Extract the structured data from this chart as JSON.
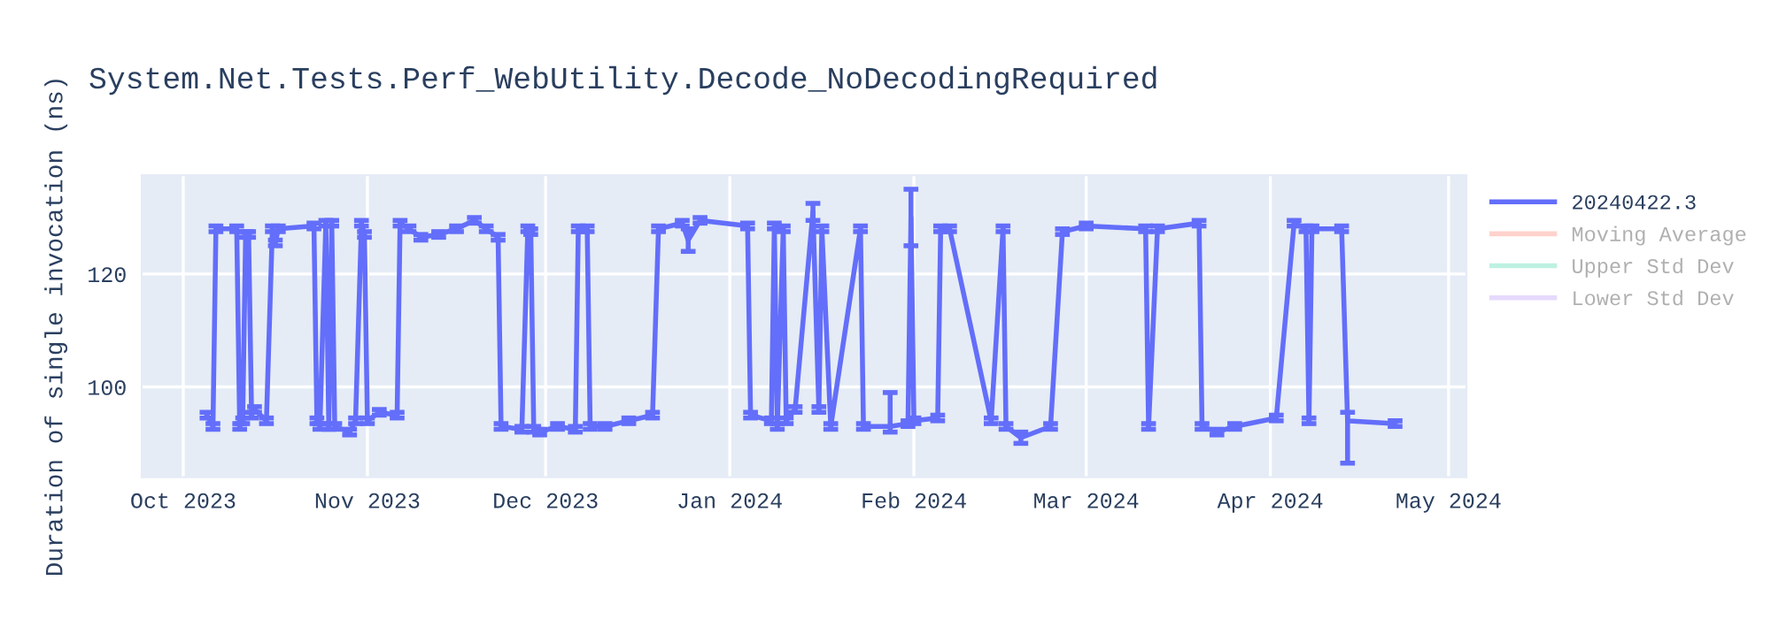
{
  "chart_data": {
    "type": "line",
    "title": "System.Net.Tests.Perf_WebUtility.Decode_NoDecodingRequired",
    "ylabel": "Duration of single invocation (ns)",
    "x": [
      "2023-10-05",
      "2023-10-06",
      "2023-10-06T12:00",
      "2023-10-10",
      "2023-10-10T12:00",
      "2023-10-11",
      "2023-10-11T12:00",
      "2023-10-12",
      "2023-10-12T12:00",
      "2023-10-13",
      "2023-10-15",
      "2023-10-16",
      "2023-10-16T12:00",
      "2023-10-17",
      "2023-10-23",
      "2023-10-23T12:00",
      "2023-10-24",
      "2023-10-25",
      "2023-10-25T12:00",
      "2023-10-26",
      "2023-10-26T12:00",
      "2023-10-29",
      "2023-10-30",
      "2023-10-31",
      "2023-10-31T12:00",
      "2023-11-01",
      "2023-11-03",
      "2023-11-06",
      "2023-11-06T12:00",
      "2023-11-08",
      "2023-11-10",
      "2023-11-13",
      "2023-11-16",
      "2023-11-19",
      "2023-11-21",
      "2023-11-23",
      "2023-11-23T12:00",
      "2023-11-27",
      "2023-11-28",
      "2023-11-28T12:00",
      "2023-11-29",
      "2023-11-30",
      "2023-12-03",
      "2023-12-06",
      "2023-12-06T12:00",
      "2023-12-08",
      "2023-12-08T12:00",
      "2023-12-11",
      "2023-12-15",
      "2023-12-19",
      "2023-12-20",
      "2023-12-24",
      "2023-12-25",
      "2023-12-27",
      "2024-01-04",
      "2024-01-04T12:00",
      "2024-01-08",
      "2024-01-08T12:00",
      "2024-01-09",
      "2024-01-10",
      "2024-01-10T12:00",
      "2024-01-12",
      "2024-01-15",
      "2024-01-16",
      "2024-01-16T12:00",
      "2024-01-18",
      "2024-01-23",
      "2024-01-23T12:00",
      "2024-01-28",
      "2024-01-31",
      "2024-01-31T12:00",
      "2024-02-01",
      "2024-02-05",
      "2024-02-05T12:00",
      "2024-02-07",
      "2024-02-14",
      "2024-02-16",
      "2024-02-16T12:00",
      "2024-02-19",
      "2024-02-24",
      "2024-02-26",
      "2024-03-01",
      "2024-03-11",
      "2024-03-11T12:00",
      "2024-03-13",
      "2024-03-20",
      "2024-03-20T12:00",
      "2024-03-23",
      "2024-03-26",
      "2024-04-02",
      "2024-04-05",
      "2024-04-07",
      "2024-04-07T12:00",
      "2024-04-08",
      "2024-04-13",
      "2024-04-14",
      "2024-04-22"
    ],
    "series": [
      {
        "name": "20240422.3",
        "color": "#636efa",
        "values": [
          95,
          93,
          128,
          128,
          93,
          94,
          127,
          127,
          95,
          96,
          94,
          128,
          125.5,
          128,
          128.5,
          94,
          93,
          129,
          93,
          129,
          93,
          92,
          94,
          129,
          127,
          94,
          95.5,
          95,
          129,
          128,
          126.5,
          127,
          128,
          129.5,
          128,
          126.5,
          93,
          92.5,
          128,
          127.5,
          92.5,
          92,
          93,
          92.5,
          128,
          128,
          93,
          93,
          94,
          95,
          128,
          129,
          126,
          129.5,
          128.5,
          95,
          94,
          128.5,
          93,
          128,
          94,
          96,
          131,
          96,
          128,
          93,
          128,
          93,
          93,
          93.5,
          130,
          94,
          94.5,
          128,
          128,
          94,
          128,
          93,
          91,
          93,
          127.5,
          128.5,
          128,
          93,
          128,
          129,
          93,
          92,
          93,
          94.5,
          129,
          128,
          94,
          128,
          128,
          94,
          93.5
        ],
        "errors": [
          0.5,
          0.5,
          0.5,
          0.5,
          0.5,
          0.5,
          0.5,
          0.5,
          0.5,
          0.5,
          0.5,
          0.5,
          0.5,
          0.5,
          0.5,
          0.5,
          0.5,
          0.5,
          0.5,
          0.5,
          0.5,
          0.5,
          0.5,
          0.5,
          0.5,
          0.5,
          0.5,
          0.5,
          0.5,
          0.5,
          0.5,
          0.5,
          0.5,
          0.5,
          0.5,
          0.5,
          0.5,
          0.5,
          0.5,
          0.5,
          0.5,
          0.5,
          0.5,
          0.5,
          0.5,
          0.5,
          0.5,
          0.5,
          0.5,
          0.5,
          0.5,
          0.5,
          2,
          0.5,
          0.5,
          0.5,
          0.5,
          0.5,
          0.5,
          0.5,
          0.5,
          0.5,
          1.5,
          0.5,
          0.5,
          0.5,
          0.5,
          0.5,
          [
            92,
            99
          ],
          0.5,
          5,
          0.5,
          0.5,
          0.5,
          0.5,
          0.5,
          0.5,
          0.5,
          1,
          0.5,
          0.5,
          0.5,
          0.5,
          0.5,
          0.5,
          0.5,
          0.5,
          0.5,
          0.5,
          0.5,
          0.5,
          0.5,
          0.5,
          0.5,
          0.5,
          [
            86.5,
            95.5
          ],
          0.5
        ]
      },
      {
        "name": "Moving Average",
        "color": "#ffa69a",
        "values": [
          null,
          null,
          null,
          null,
          null,
          null,
          null,
          null,
          null,
          null,
          null,
          null,
          null,
          null,
          null,
          null,
          null,
          null,
          null,
          null,
          null,
          null,
          null,
          null,
          null,
          null,
          null,
          null,
          null,
          null,
          null,
          null,
          null,
          null,
          null,
          null,
          null,
          null,
          null,
          null,
          null,
          null,
          null,
          null,
          null,
          null,
          null,
          null,
          null,
          null,
          null,
          null,
          null,
          null,
          null,
          null,
          null,
          null,
          null,
          null,
          null,
          null,
          null,
          null,
          null,
          null,
          null,
          null,
          null,
          null,
          null,
          null,
          null,
          null,
          null,
          null,
          null,
          null,
          null,
          null,
          null,
          null,
          null,
          null,
          null,
          null,
          null,
          null,
          null,
          null,
          null,
          null,
          null,
          null,
          null,
          null,
          null
        ]
      },
      {
        "name": "Upper Std Dev",
        "color": "#7ee3c4",
        "values": [
          null,
          null,
          null,
          null,
          null,
          null,
          null,
          null,
          null,
          null,
          null,
          null,
          null,
          null,
          null,
          null,
          null,
          null,
          null,
          null,
          null,
          null,
          null,
          null,
          null,
          null,
          null,
          null,
          null,
          null,
          null,
          null,
          null,
          null,
          null,
          null,
          null,
          null,
          null,
          null,
          null,
          null,
          null,
          null,
          null,
          null,
          null,
          null,
          null,
          null,
          null,
          null,
          null,
          null,
          null,
          null,
          null,
          null,
          null,
          null,
          null,
          null,
          null,
          null,
          null,
          null,
          null,
          null,
          null,
          null,
          null,
          null,
          null,
          null,
          null,
          null,
          null,
          null,
          null,
          null,
          null,
          null,
          null,
          null,
          null,
          null,
          null,
          null,
          null,
          null,
          null,
          null,
          null,
          null,
          null,
          null,
          null
        ]
      },
      {
        "name": "Lower Std Dev",
        "color": "#cdb6fb",
        "values": [
          null,
          null,
          null,
          null,
          null,
          null,
          null,
          null,
          null,
          null,
          null,
          null,
          null,
          null,
          null,
          null,
          null,
          null,
          null,
          null,
          null,
          null,
          null,
          null,
          null,
          null,
          null,
          null,
          null,
          null,
          null,
          null,
          null,
          null,
          null,
          null,
          null,
          null,
          null,
          null,
          null,
          null,
          null,
          null,
          null,
          null,
          null,
          null,
          null,
          null,
          null,
          null,
          null,
          null,
          null,
          null,
          null,
          null,
          null,
          null,
          null,
          null,
          null,
          null,
          null,
          null,
          null,
          null,
          null,
          null,
          null,
          null,
          null,
          null,
          null,
          null,
          null,
          null,
          null,
          null,
          null,
          null,
          null,
          null,
          null,
          null,
          null,
          null,
          null,
          null,
          null,
          null,
          null,
          null,
          null,
          null,
          null
        ]
      }
    ],
    "xlim": [
      "2023-09-24",
      "2024-05-04"
    ],
    "xticks": [
      {
        "value": "2023-10-01",
        "label": "Oct 2023"
      },
      {
        "value": "2023-11-01",
        "label": "Nov 2023"
      },
      {
        "value": "2023-12-01",
        "label": "Dec 2023"
      },
      {
        "value": "2024-01-01",
        "label": "Jan 2024"
      },
      {
        "value": "2024-02-01",
        "label": "Feb 2024"
      },
      {
        "value": "2024-03-01",
        "label": "Mar 2024"
      },
      {
        "value": "2024-04-01",
        "label": "Apr 2024"
      },
      {
        "value": "2024-05-01",
        "label": "May 2024"
      }
    ],
    "ylim": [
      84,
      137.5
    ],
    "yticks": [
      100,
      120
    ],
    "grid": true,
    "legend": "top right",
    "marker": "none",
    "line_style": "solid"
  }
}
